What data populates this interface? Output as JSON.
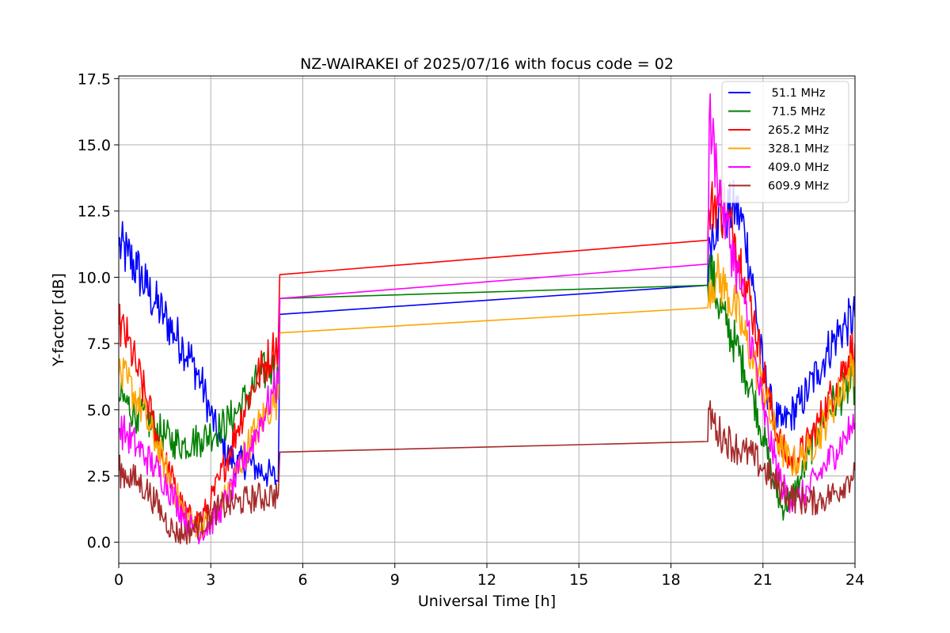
{
  "chart_data": {
    "type": "line",
    "title": "NZ-WAIRAKEI of 2025/07/16 with focus code = 02",
    "xlabel": "Universal Time [h]",
    "ylabel": "Y-factor [dB]",
    "xlim": [
      0,
      24
    ],
    "ylim": [
      -0.8,
      17.6
    ],
    "xticks": [
      0,
      3,
      6,
      9,
      12,
      15,
      18,
      21,
      24
    ],
    "xtick_labels": [
      "0",
      "3",
      "6",
      "9",
      "12",
      "15",
      "18",
      "21",
      "24"
    ],
    "yticks": [
      0,
      2.5,
      5,
      7.5,
      10,
      12.5,
      15,
      17.5
    ],
    "ytick_labels": [
      "0.0",
      "2.5",
      "5.0",
      "7.5",
      "10.0",
      "12.5",
      "15.0",
      "17.5"
    ],
    "grid": true,
    "legend_position": "top-right",
    "series": [
      {
        "name": " 51.1 MHz",
        "color": "#0000ff",
        "points": [
          [
            0,
            11.2
          ],
          [
            0.3,
            10.8
          ],
          [
            0.6,
            10.3
          ],
          [
            0.9,
            9.6
          ],
          [
            1.2,
            9.0
          ],
          [
            1.5,
            8.5
          ],
          [
            1.8,
            7.9
          ],
          [
            2.1,
            7.4
          ],
          [
            2.4,
            6.8
          ],
          [
            2.7,
            6.0
          ],
          [
            3.0,
            4.8
          ],
          [
            3.3,
            3.8
          ],
          [
            3.6,
            3.2
          ],
          [
            3.9,
            3.0
          ],
          [
            4.2,
            3.0
          ],
          [
            4.5,
            2.8
          ],
          [
            4.8,
            2.6
          ],
          [
            5.0,
            2.5
          ],
          [
            5.2,
            2.3
          ],
          [
            5.25,
            8.6
          ],
          [
            19.2,
            9.7
          ],
          [
            19.25,
            11.5
          ],
          [
            19.5,
            12.2
          ],
          [
            19.8,
            12.4
          ],
          [
            20.1,
            12.6
          ],
          [
            20.4,
            11.8
          ],
          [
            20.7,
            9.5
          ],
          [
            21.0,
            6.5
          ],
          [
            21.3,
            5.0
          ],
          [
            21.6,
            4.4
          ],
          [
            21.9,
            4.8
          ],
          [
            22.2,
            5.2
          ],
          [
            22.5,
            5.8
          ],
          [
            22.8,
            6.5
          ],
          [
            23.1,
            7.2
          ],
          [
            23.4,
            7.8
          ],
          [
            23.7,
            8.2
          ],
          [
            24.0,
            8.5
          ]
        ]
      },
      {
        "name": " 71.5 MHz",
        "color": "#008000",
        "points": [
          [
            0,
            5.5
          ],
          [
            0.3,
            5.2
          ],
          [
            0.6,
            4.8
          ],
          [
            0.9,
            4.6
          ],
          [
            1.2,
            4.3
          ],
          [
            1.5,
            4.0
          ],
          [
            1.8,
            3.8
          ],
          [
            2.1,
            3.7
          ],
          [
            2.4,
            3.8
          ],
          [
            2.7,
            3.9
          ],
          [
            3.0,
            4.1
          ],
          [
            3.3,
            4.3
          ],
          [
            3.6,
            4.6
          ],
          [
            3.9,
            5.0
          ],
          [
            4.2,
            5.5
          ],
          [
            4.5,
            6.0
          ],
          [
            4.8,
            6.5
          ],
          [
            5.0,
            6.6
          ],
          [
            5.2,
            6.0
          ],
          [
            5.25,
            9.2
          ],
          [
            19.2,
            9.7
          ],
          [
            19.25,
            10.5
          ],
          [
            19.5,
            9.2
          ],
          [
            19.8,
            8.2
          ],
          [
            20.1,
            7.5
          ],
          [
            20.4,
            6.5
          ],
          [
            20.7,
            5.5
          ],
          [
            21.0,
            4.0
          ],
          [
            21.3,
            2.5
          ],
          [
            21.6,
            1.3
          ],
          [
            21.9,
            1.6
          ],
          [
            22.2,
            2.3
          ],
          [
            22.5,
            3.3
          ],
          [
            22.8,
            4.3
          ],
          [
            23.1,
            5.0
          ],
          [
            23.4,
            5.4
          ],
          [
            23.7,
            5.7
          ],
          [
            24.0,
            6.0
          ]
        ]
      },
      {
        "name": "265.2 MHz",
        "color": "#ff0000",
        "points": [
          [
            0,
            8.2
          ],
          [
            0.3,
            7.6
          ],
          [
            0.6,
            6.5
          ],
          [
            0.9,
            5.4
          ],
          [
            1.2,
            4.2
          ],
          [
            1.5,
            3.0
          ],
          [
            1.8,
            2.2
          ],
          [
            2.1,
            1.2
          ],
          [
            2.4,
            0.8
          ],
          [
            2.7,
            0.9
          ],
          [
            3.0,
            1.5
          ],
          [
            3.3,
            2.4
          ],
          [
            3.6,
            3.4
          ],
          [
            3.9,
            4.4
          ],
          [
            4.2,
            5.4
          ],
          [
            4.5,
            6.2
          ],
          [
            4.8,
            6.8
          ],
          [
            5.0,
            7.2
          ],
          [
            5.2,
            7.5
          ],
          [
            5.25,
            10.1
          ],
          [
            19.2,
            11.4
          ],
          [
            19.25,
            12.5
          ],
          [
            19.5,
            13.0
          ],
          [
            19.8,
            12.2
          ],
          [
            20.1,
            11.5
          ],
          [
            20.4,
            10.0
          ],
          [
            20.7,
            8.5
          ],
          [
            21.0,
            6.5
          ],
          [
            21.3,
            4.8
          ],
          [
            21.6,
            3.6
          ],
          [
            21.9,
            3.0
          ],
          [
            22.2,
            3.3
          ],
          [
            22.5,
            3.8
          ],
          [
            22.8,
            4.5
          ],
          [
            23.1,
            5.2
          ],
          [
            23.4,
            6.0
          ],
          [
            23.7,
            6.8
          ],
          [
            24.0,
            7.5
          ]
        ]
      },
      {
        "name": "328.1 MHz",
        "color": "#ffa500",
        "points": [
          [
            0,
            6.3
          ],
          [
            0.3,
            6.0
          ],
          [
            0.6,
            5.4
          ],
          [
            0.9,
            4.6
          ],
          [
            1.2,
            3.8
          ],
          [
            1.5,
            2.9
          ],
          [
            1.8,
            2.0
          ],
          [
            2.1,
            1.2
          ],
          [
            2.4,
            0.7
          ],
          [
            2.7,
            0.6
          ],
          [
            3.0,
            0.8
          ],
          [
            3.3,
            1.3
          ],
          [
            3.6,
            2.0
          ],
          [
            3.9,
            2.8
          ],
          [
            4.2,
            3.6
          ],
          [
            4.5,
            4.3
          ],
          [
            4.8,
            4.9
          ],
          [
            5.0,
            5.2
          ],
          [
            5.2,
            5.4
          ],
          [
            5.25,
            7.9
          ],
          [
            19.2,
            8.85
          ],
          [
            19.25,
            9.8
          ],
          [
            19.5,
            10.0
          ],
          [
            19.8,
            9.5
          ],
          [
            20.1,
            8.8
          ],
          [
            20.4,
            7.8
          ],
          [
            20.7,
            6.8
          ],
          [
            21.0,
            5.8
          ],
          [
            21.3,
            4.5
          ],
          [
            21.6,
            3.5
          ],
          [
            21.9,
            3.0
          ],
          [
            22.2,
            3.1
          ],
          [
            22.5,
            3.5
          ],
          [
            22.8,
            4.0
          ],
          [
            23.1,
            4.7
          ],
          [
            23.4,
            5.4
          ],
          [
            23.7,
            6.1
          ],
          [
            24.0,
            6.8
          ]
        ]
      },
      {
        "name": "409.0 MHz",
        "color": "#ff00ff",
        "points": [
          [
            0,
            4.3
          ],
          [
            0.3,
            4.0
          ],
          [
            0.6,
            3.6
          ],
          [
            0.9,
            3.2
          ],
          [
            1.2,
            2.8
          ],
          [
            1.5,
            2.3
          ],
          [
            1.8,
            1.7
          ],
          [
            2.1,
            1.0
          ],
          [
            2.4,
            0.5
          ],
          [
            2.7,
            0.4
          ],
          [
            3.0,
            0.7
          ],
          [
            3.3,
            1.2
          ],
          [
            3.6,
            1.8
          ],
          [
            3.9,
            2.6
          ],
          [
            4.2,
            3.4
          ],
          [
            4.5,
            4.2
          ],
          [
            4.8,
            5.0
          ],
          [
            5.0,
            5.6
          ],
          [
            5.2,
            6.0
          ],
          [
            5.25,
            9.2
          ],
          [
            19.2,
            10.5
          ],
          [
            19.25,
            16.0
          ],
          [
            19.5,
            14.0
          ],
          [
            19.8,
            12.0
          ],
          [
            20.1,
            10.5
          ],
          [
            20.4,
            9.0
          ],
          [
            20.7,
            7.0
          ],
          [
            21.0,
            5.0
          ],
          [
            21.3,
            3.5
          ],
          [
            21.6,
            2.2
          ],
          [
            21.9,
            1.6
          ],
          [
            22.2,
            1.7
          ],
          [
            22.5,
            2.0
          ],
          [
            22.8,
            2.5
          ],
          [
            23.1,
            3.0
          ],
          [
            23.4,
            3.5
          ],
          [
            23.7,
            4.0
          ],
          [
            24.0,
            4.5
          ]
        ]
      },
      {
        "name": "609.9 MHz",
        "color": "#a52a2a",
        "points": [
          [
            0,
            2.7
          ],
          [
            0.3,
            2.5
          ],
          [
            0.6,
            2.3
          ],
          [
            0.9,
            2.0
          ],
          [
            1.2,
            1.5
          ],
          [
            1.5,
            0.9
          ],
          [
            1.8,
            0.4
          ],
          [
            2.1,
            0.3
          ],
          [
            2.4,
            0.5
          ],
          [
            2.7,
            0.7
          ],
          [
            3.0,
            1.0
          ],
          [
            3.3,
            1.3
          ],
          [
            3.6,
            1.4
          ],
          [
            3.9,
            1.5
          ],
          [
            4.2,
            1.6
          ],
          [
            4.5,
            1.7
          ],
          [
            4.8,
            1.7
          ],
          [
            5.0,
            1.8
          ],
          [
            5.2,
            1.8
          ],
          [
            5.25,
            3.4
          ],
          [
            19.2,
            3.8
          ],
          [
            19.25,
            5.0
          ],
          [
            19.5,
            4.2
          ],
          [
            19.8,
            3.9
          ],
          [
            20.1,
            3.6
          ],
          [
            20.4,
            3.4
          ],
          [
            20.7,
            3.2
          ],
          [
            21.0,
            2.8
          ],
          [
            21.3,
            2.4
          ],
          [
            21.6,
            2.0
          ],
          [
            21.9,
            1.7
          ],
          [
            22.2,
            1.6
          ],
          [
            22.5,
            1.5
          ],
          [
            22.8,
            1.6
          ],
          [
            23.1,
            1.7
          ],
          [
            23.4,
            1.9
          ],
          [
            23.7,
            2.3
          ],
          [
            24.0,
            2.7
          ]
        ]
      }
    ]
  }
}
